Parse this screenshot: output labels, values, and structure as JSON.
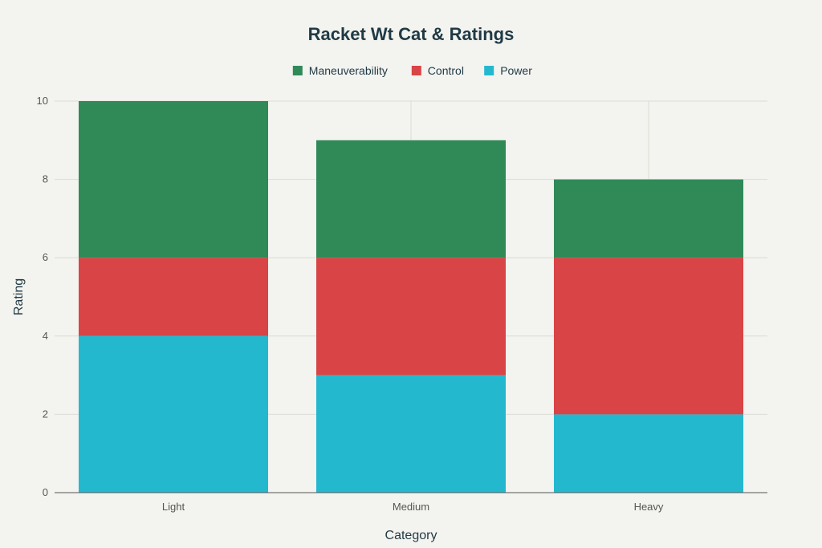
{
  "chart_data": {
    "type": "bar",
    "stacked": true,
    "title": "Racket Wt Cat & Ratings",
    "xlabel": "Category",
    "ylabel": "Rating",
    "categories": [
      "Light",
      "Medium",
      "Heavy"
    ],
    "ylim": [
      0,
      10
    ],
    "yticks": [
      0,
      2,
      4,
      6,
      8,
      10
    ],
    "legend_position": "top",
    "grid": true,
    "series": [
      {
        "name": "Power",
        "color": "#24b8cf",
        "values": [
          4,
          3,
          2
        ]
      },
      {
        "name": "Control",
        "color": "#d94446",
        "values": [
          2,
          3,
          4
        ]
      },
      {
        "name": "Maneuverability",
        "color": "#2f8a58",
        "values": [
          4,
          3,
          2
        ]
      }
    ],
    "legend_order": [
      "Maneuverability",
      "Control",
      "Power"
    ]
  }
}
